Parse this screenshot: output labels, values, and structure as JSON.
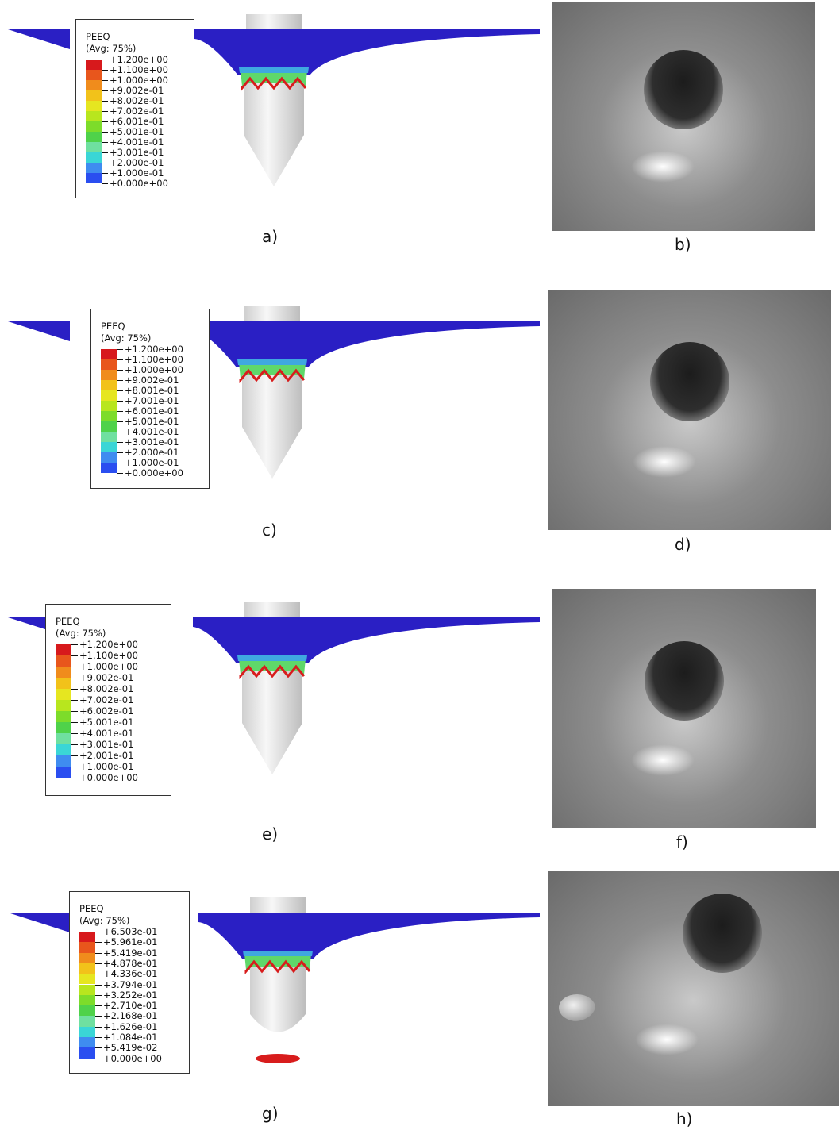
{
  "panels": [
    {
      "legend": {
        "title": "PEEQ",
        "subtitle": "(Avg: 75%)",
        "labels": [
          "+1.200e+00",
          "+1.100e+00",
          "+1.000e+00",
          "+9.002e-01",
          "+8.002e-01",
          "+7.002e-01",
          "+6.001e-01",
          "+5.001e-01",
          "+4.001e-01",
          "+3.001e-01",
          "+2.000e-01",
          "+1.000e-01",
          "+0.000e+00"
        ]
      },
      "sim_label": "a)",
      "photo_label": "b)"
    },
    {
      "legend": {
        "title": "PEEQ",
        "subtitle": "(Avg: 75%)",
        "labels": [
          "+1.200e+00",
          "+1.100e+00",
          "+1.000e+00",
          "+9.002e-01",
          "+8.001e-01",
          "+7.001e-01",
          "+6.001e-01",
          "+5.001e-01",
          "+4.001e-01",
          "+3.001e-01",
          "+2.000e-01",
          "+1.000e-01",
          "+0.000e+00"
        ]
      },
      "sim_label": "c)",
      "photo_label": "d)"
    },
    {
      "legend": {
        "title": "PEEQ",
        "subtitle": "(Avg: 75%)",
        "labels": [
          "+1.200e+00",
          "+1.100e+00",
          "+1.000e+00",
          "+9.002e-01",
          "+8.002e-01",
          "+7.002e-01",
          "+6.002e-01",
          "+5.001e-01",
          "+4.001e-01",
          "+3.001e-01",
          "+2.001e-01",
          "+1.000e-01",
          "+0.000e+00"
        ]
      },
      "sim_label": "e)",
      "photo_label": "f)"
    },
    {
      "legend": {
        "title": "PEEQ",
        "subtitle": "(Avg: 75%)",
        "labels": [
          "+6.503e-01",
          "+5.961e-01",
          "+5.419e-01",
          "+4.878e-01",
          "+4.336e-01",
          "+3.794e-01",
          "+3.252e-01",
          "+2.710e-01",
          "+2.168e-01",
          "+1.626e-01",
          "+1.084e-01",
          "+5.419e-02",
          "+0.000e+00"
        ]
      },
      "sim_label": "g)",
      "photo_label": "h)"
    }
  ]
}
